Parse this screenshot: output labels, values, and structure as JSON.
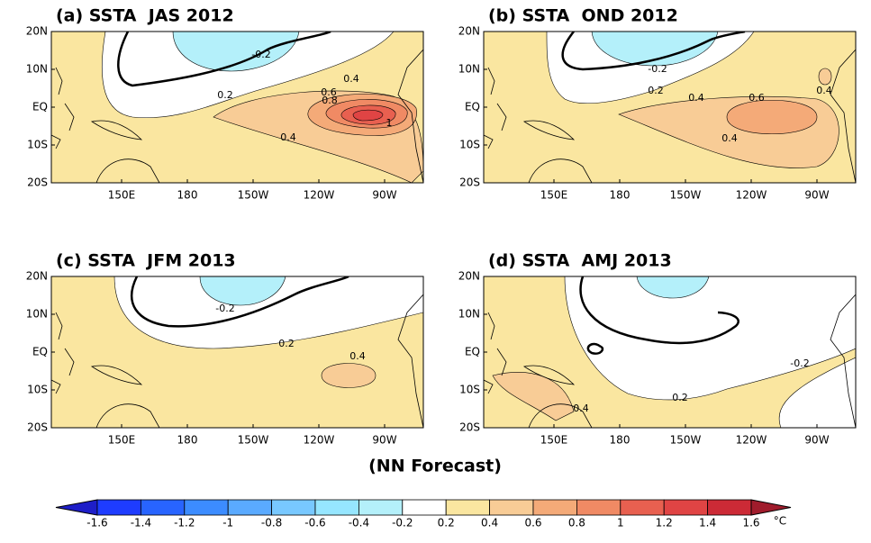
{
  "figure": {
    "panels": [
      {
        "title": "(a) SSTA  JAS 2012",
        "contour_labels": [
          "-0.2",
          "0.4",
          "0.2",
          "0.6",
          "0.8",
          "1",
          "0.4"
        ]
      },
      {
        "title": "(b) SSTA  OND 2012",
        "contour_labels": [
          "-0.2",
          "0.2",
          "0.4",
          "0.6",
          "0.4",
          "0.4"
        ]
      },
      {
        "title": "(c) SSTA  JFM 2013",
        "contour_labels": [
          "-0.2",
          "0.2",
          "0.4"
        ]
      },
      {
        "title": "(d) SSTA  AMJ 2013",
        "contour_labels": [
          "-0.2",
          "0.2",
          "0.4"
        ]
      }
    ],
    "lat_labels": [
      "20N",
      "10N",
      "EQ",
      "10S",
      "20S"
    ],
    "lon_labels": [
      "150E",
      "180",
      "150W",
      "120W",
      "90W"
    ],
    "footer": "(NN Forecast)",
    "colorbar": {
      "labels": [
        "-1.6",
        "-1.4",
        "-1.2",
        "-1",
        "-0.8",
        "-0.6",
        "-0.4",
        "-0.2",
        "0.2",
        "0.4",
        "0.6",
        "0.8",
        "1",
        "1.2",
        "1.4",
        "1.6"
      ],
      "unit": "°C"
    }
  }
}
